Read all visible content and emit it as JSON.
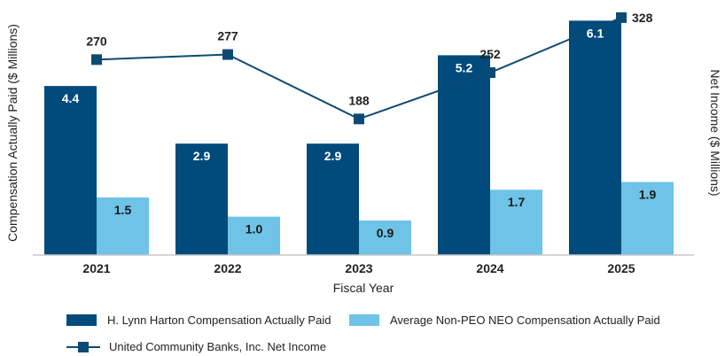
{
  "chart_data": {
    "type": "bar",
    "categories": [
      "2021",
      "2022",
      "2023",
      "2024",
      "2025"
    ],
    "xlabel": "Fiscal Year",
    "ylabel_left": "Compensation Actually Paid ($ Millions)",
    "ylabel_right": "Net Income ($ Millions)",
    "series": [
      {
        "name": "H. Lynn Harton Compensation Actually Paid",
        "type": "bar",
        "axis": "left",
        "color": "#004a7c",
        "values": [
          4.4,
          2.9,
          2.9,
          5.2,
          6.1
        ]
      },
      {
        "name": "Average Non-PEO NEO Compensation Actually Paid",
        "type": "bar",
        "axis": "left",
        "color": "#6ec3e6",
        "values": [
          1.5,
          1.0,
          0.9,
          1.7,
          1.9
        ]
      },
      {
        "name": "United Community Banks, Inc. Net Income",
        "type": "line",
        "axis": "right",
        "marker": "square",
        "color": "#0d4a73",
        "values": [
          270,
          277,
          188,
          252,
          328
        ]
      }
    ],
    "ylim_left": [
      0,
      6.5
    ],
    "ylim_right": [
      0,
      345
    ],
    "grid": false,
    "legend_position": "bottom"
  }
}
